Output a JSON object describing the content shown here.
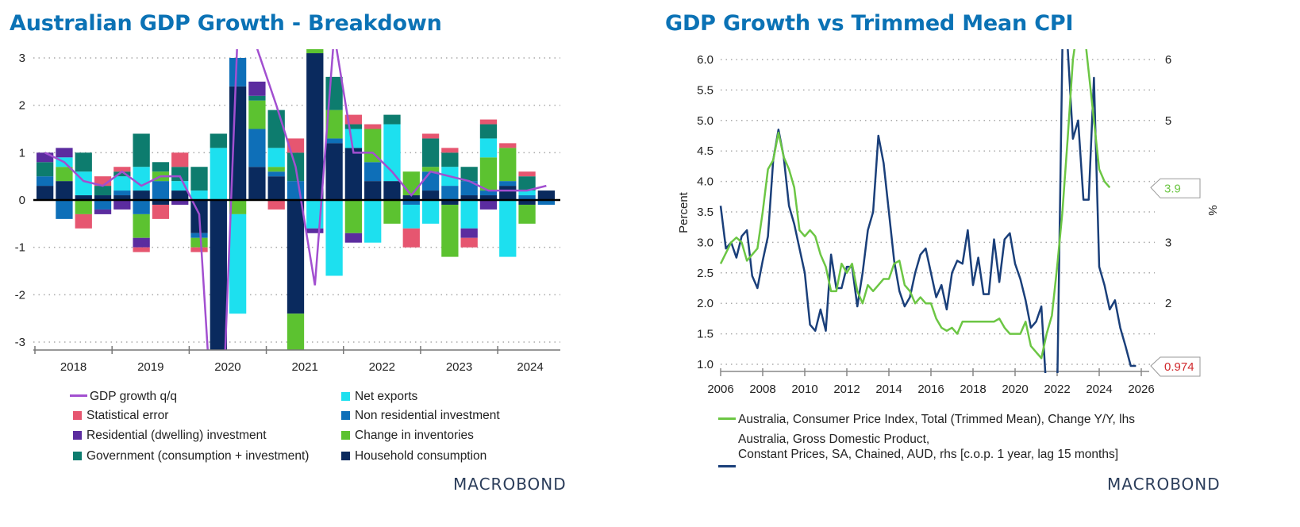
{
  "chart_data": [
    {
      "type": "bar",
      "stacked": true,
      "title": "Australian GDP Growth - Breakdown",
      "xlabel": "",
      "ylabel": "",
      "ylim": [
        -3,
        3
      ],
      "yticks": [
        3,
        2,
        1,
        0,
        -1,
        -2,
        -3
      ],
      "xtick_labels": [
        "2018",
        "2019",
        "2020",
        "2021",
        "2022",
        "2023",
        "2024"
      ],
      "grid": true,
      "legend_position": "bottom",
      "categories": [
        "2018Q1",
        "2018Q2",
        "2018Q3",
        "2018Q4",
        "2019Q1",
        "2019Q2",
        "2019Q3",
        "2019Q4",
        "2020Q1",
        "2020Q2",
        "2020Q3",
        "2020Q4",
        "2021Q1",
        "2021Q2",
        "2021Q3",
        "2021Q4",
        "2022Q1",
        "2022Q2",
        "2022Q3",
        "2022Q4",
        "2023Q1",
        "2023Q2",
        "2023Q3",
        "2023Q4",
        "2024Q1",
        "2024Q2",
        "2024Q3"
      ],
      "series": [
        {
          "name": "Household consumption",
          "color": "#0a2a5e",
          "values": [
            0.3,
            0.4,
            0.1,
            0.1,
            0.1,
            0.2,
            -0.1,
            0.2,
            -0.7,
            -3.5,
            2.4,
            0.7,
            0.5,
            -2.4,
            3.1,
            1.2,
            1.1,
            0.4,
            0.4,
            0.1,
            0.2,
            -0.1,
            0.1,
            0.1,
            0.3,
            -0.1,
            0.2
          ]
        },
        {
          "name": "Non residential investment",
          "color": "#0e6fb8",
          "values": [
            0.2,
            -0.4,
            0.0,
            -0.2,
            0.1,
            -0.3,
            0.4,
            0.0,
            -0.1,
            0.0,
            0.6,
            0.8,
            0.1,
            0.4,
            0.0,
            0.1,
            0.0,
            0.4,
            0.0,
            -0.1,
            0.4,
            0.3,
            0.3,
            0.1,
            0.1,
            0.1,
            -0.1
          ]
        },
        {
          "name": "Change in inventories",
          "color": "#5cc230",
          "values": [
            0.0,
            0.3,
            -0.3,
            0.0,
            0.0,
            -0.5,
            0.2,
            0.0,
            -0.2,
            0.0,
            -0.3,
            0.6,
            0.1,
            -0.8,
            0.1,
            0.6,
            -0.7,
            0.7,
            -0.5,
            0.5,
            0.1,
            -1.1,
            0.0,
            0.7,
            0.7,
            -0.4,
            0.0
          ]
        },
        {
          "name": "Net exports",
          "color": "#1de0ef",
          "values": [
            0.0,
            0.2,
            0.5,
            0.0,
            0.3,
            0.5,
            0.0,
            0.2,
            0.2,
            1.1,
            -2.1,
            0.0,
            0.4,
            0.0,
            -0.6,
            -1.6,
            0.4,
            -0.9,
            1.2,
            -0.5,
            -0.5,
            0.4,
            -0.6,
            0.4,
            -1.2,
            0.1,
            0.0
          ]
        },
        {
          "name": "Government (consumption + investment)",
          "color": "#0d7c6e",
          "values": [
            0.3,
            0.0,
            0.4,
            0.2,
            0.1,
            0.7,
            0.2,
            0.3,
            0.5,
            0.3,
            0.0,
            0.1,
            0.8,
            0.6,
            0.0,
            0.7,
            0.1,
            0.0,
            0.2,
            0.0,
            0.6,
            0.3,
            0.3,
            0.3,
            0.0,
            0.3,
            0.0
          ]
        },
        {
          "name": "Residential (dwelling) investment",
          "color": "#5b2c9f",
          "values": [
            0.2,
            0.2,
            0.0,
            -0.1,
            -0.2,
            -0.2,
            0.0,
            -0.1,
            0.0,
            0.0,
            0.0,
            0.3,
            0.0,
            0.0,
            -0.1,
            0.0,
            -0.2,
            0.0,
            0.0,
            0.0,
            0.0,
            0.0,
            -0.2,
            -0.2,
            0.0,
            0.0,
            0.0
          ]
        },
        {
          "name": "Statistical error",
          "color": "#e65670",
          "values": [
            0.0,
            0.0,
            -0.3,
            0.2,
            0.1,
            -0.1,
            -0.3,
            0.3,
            -0.1,
            0.0,
            0.0,
            0.0,
            -0.2,
            0.3,
            0.0,
            0.0,
            0.2,
            0.1,
            0.0,
            -0.4,
            0.1,
            0.1,
            -0.2,
            0.1,
            0.1,
            0.1,
            0.0
          ]
        }
      ],
      "line_series": {
        "name": "GDP growth q/q",
        "color": "#a24fd0",
        "values": [
          1.0,
          0.8,
          0.4,
          0.3,
          0.6,
          0.3,
          0.5,
          0.5,
          -0.3,
          -6.8,
          3.6,
          3.2,
          2.0,
          0.7,
          -1.8,
          3.5,
          1.0,
          1.0,
          0.6,
          0.1,
          0.6,
          0.5,
          0.4,
          0.2,
          0.2,
          0.2,
          0.3
        ]
      }
    },
    {
      "type": "line",
      "title": "GDP Growth vs Trimmed Mean CPI",
      "ylabel_left": "Percent",
      "ylabel_right": "%",
      "ylim_left": [
        1.0,
        6.0
      ],
      "ylim_right": [
        1.0,
        6.0
      ],
      "yticks_left": [
        "6.0",
        "5.5",
        "5.0",
        "4.5",
        "4.0",
        "3.5",
        "3.0",
        "2.5",
        "2.0",
        "1.5",
        "1.0"
      ],
      "yticks_right": [
        "6",
        "5",
        "3",
        "2"
      ],
      "xlim": [
        2006,
        2026
      ],
      "xticks": [
        "2006",
        "2008",
        "2010",
        "2012",
        "2014",
        "2016",
        "2018",
        "2020",
        "2022",
        "2024",
        "2026"
      ],
      "grid": true,
      "legend_position": "bottom",
      "series": [
        {
          "name": "Australia, Consumer Price Index, Total (Trimmed Mean), Change Y/Y, lhs",
          "color": "#6cc644",
          "axis": "left",
          "last_value_label": "3.9",
          "x": [
            2006.0,
            2006.5,
            2006.75,
            2007.0,
            2007.25,
            2007.5,
            2007.75,
            2008.0,
            2008.25,
            2008.5,
            2008.75,
            2009.0,
            2009.25,
            2009.5,
            2009.75,
            2010.0,
            2010.25,
            2010.5,
            2010.75,
            2011.0,
            2011.25,
            2011.5,
            2011.75,
            2012.0,
            2012.25,
            2012.5,
            2012.75,
            2013.0,
            2013.25,
            2013.5,
            2013.75,
            2014.0,
            2014.25,
            2014.5,
            2014.75,
            2015.0,
            2015.25,
            2015.5,
            2015.75,
            2016.0,
            2016.25,
            2016.5,
            2016.75,
            2017.0,
            2017.25,
            2017.5,
            2017.75,
            2018.0,
            2018.5,
            2019.0,
            2019.25,
            2019.5,
            2019.75,
            2020.0,
            2020.25,
            2020.5,
            2020.75,
            2021.0,
            2021.25,
            2021.5,
            2021.75,
            2022.0,
            2022.25,
            2022.5,
            2022.75,
            2023.0,
            2023.25,
            2023.5,
            2023.75,
            2024.0,
            2024.25,
            2024.5
          ],
          "y": [
            2.65,
            3.0,
            3.08,
            3.0,
            2.7,
            2.8,
            2.9,
            3.5,
            4.2,
            4.35,
            4.8,
            4.4,
            4.2,
            3.9,
            3.2,
            3.1,
            3.2,
            3.1,
            2.8,
            2.6,
            2.2,
            2.2,
            2.65,
            2.5,
            2.65,
            2.2,
            2.0,
            2.3,
            2.2,
            2.3,
            2.4,
            2.4,
            2.65,
            2.7,
            2.3,
            2.2,
            2.0,
            2.1,
            2.0,
            2.0,
            1.75,
            1.6,
            1.55,
            1.6,
            1.5,
            1.7,
            1.7,
            1.7,
            1.7,
            1.7,
            1.75,
            1.6,
            1.5,
            1.5,
            1.5,
            1.7,
            1.3,
            1.2,
            1.1,
            1.5,
            1.8,
            2.6,
            3.5,
            4.7,
            6.0,
            6.6,
            6.6,
            5.8,
            5.0,
            4.2,
            4.0,
            3.9
          ]
        },
        {
          "name": "Australia, Gross Domestic Product, Constant Prices, SA, Chained, AUD, rhs [c.o.p. 1 year, lag 15 months]",
          "color": "#1a3f7a",
          "axis": "right",
          "last_value_label": "0.974",
          "x": [
            2006.0,
            2006.25,
            2006.5,
            2006.75,
            2007.0,
            2007.25,
            2007.5,
            2007.75,
            2008.0,
            2008.25,
            2008.5,
            2008.75,
            2009.0,
            2009.25,
            2009.5,
            2009.75,
            2010.0,
            2010.25,
            2010.5,
            2010.75,
            2011.0,
            2011.25,
            2011.5,
            2011.75,
            2012.0,
            2012.25,
            2012.5,
            2012.75,
            2013.0,
            2013.25,
            2013.5,
            2013.75,
            2014.0,
            2014.25,
            2014.5,
            2014.75,
            2015.0,
            2015.25,
            2015.5,
            2015.75,
            2016.0,
            2016.25,
            2016.5,
            2016.75,
            2017.0,
            2017.25,
            2017.5,
            2017.75,
            2018.0,
            2018.25,
            2018.5,
            2018.75,
            2019.0,
            2019.25,
            2019.5,
            2019.75,
            2020.0,
            2020.25,
            2020.5,
            2020.75,
            2021.0,
            2021.25,
            2021.5,
            2022.0,
            2022.25,
            2022.5,
            2022.75,
            2023.0,
            2023.25,
            2023.5,
            2023.75,
            2024.0,
            2024.25,
            2024.5,
            2024.75,
            2025.0,
            2025.25,
            2025.5,
            2025.75
          ],
          "y": [
            3.6,
            2.9,
            3.0,
            2.75,
            3.1,
            3.2,
            2.45,
            2.25,
            2.7,
            3.1,
            4.35,
            4.85,
            4.4,
            3.6,
            3.3,
            2.9,
            2.5,
            1.65,
            1.55,
            1.9,
            1.55,
            2.8,
            2.25,
            2.25,
            2.6,
            2.6,
            1.95,
            2.5,
            3.2,
            3.5,
            4.75,
            4.3,
            3.5,
            2.7,
            2.2,
            1.95,
            2.1,
            2.5,
            2.8,
            2.9,
            2.5,
            2.1,
            2.3,
            1.9,
            2.5,
            2.7,
            2.65,
            3.2,
            2.3,
            2.75,
            2.15,
            2.15,
            3.05,
            2.35,
            3.05,
            3.15,
            2.65,
            2.4,
            2.05,
            1.6,
            1.7,
            1.95,
            0.5,
            0.5,
            6.2,
            6.2,
            4.7,
            5.0,
            3.7,
            3.7,
            5.7,
            2.6,
            2.3,
            1.9,
            2.05,
            1.6,
            1.3,
            0.974,
            0.974
          ]
        }
      ]
    }
  ],
  "left": {
    "title": "Australian GDP Growth - Breakdown",
    "legend": [
      {
        "label": "GDP growth q/q",
        "kind": "line",
        "color": "#a24fd0"
      },
      {
        "label": "Net exports",
        "kind": "box",
        "color": "#1de0ef"
      },
      {
        "label": "Statistical error",
        "kind": "box",
        "color": "#e65670"
      },
      {
        "label": "Non residential investment",
        "kind": "box",
        "color": "#0e6fb8"
      },
      {
        "label": "Residential (dwelling) investment",
        "kind": "box",
        "color": "#5b2c9f"
      },
      {
        "label": "Change in inventories",
        "kind": "box",
        "color": "#5cc230"
      },
      {
        "label": "Government (consumption + investment)",
        "kind": "box",
        "color": "#0d7c6e"
      },
      {
        "label": "Household consumption",
        "kind": "box",
        "color": "#0a2a5e"
      }
    ],
    "logo": "MACROBOND"
  },
  "right": {
    "title": "GDP Growth vs Trimmed Mean CPI",
    "legend": [
      {
        "label": "Australia, Consumer Price Index, Total (Trimmed Mean), Change Y/Y, lhs",
        "color": "#6cc644"
      },
      {
        "label": "Australia, Gross Domestic Product,",
        "label2": "Constant Prices, SA, Chained, AUD, rhs [c.o.p. 1 year, lag 15 months]",
        "color": "#1a3f7a"
      }
    ],
    "logo": "MACROBOND"
  }
}
